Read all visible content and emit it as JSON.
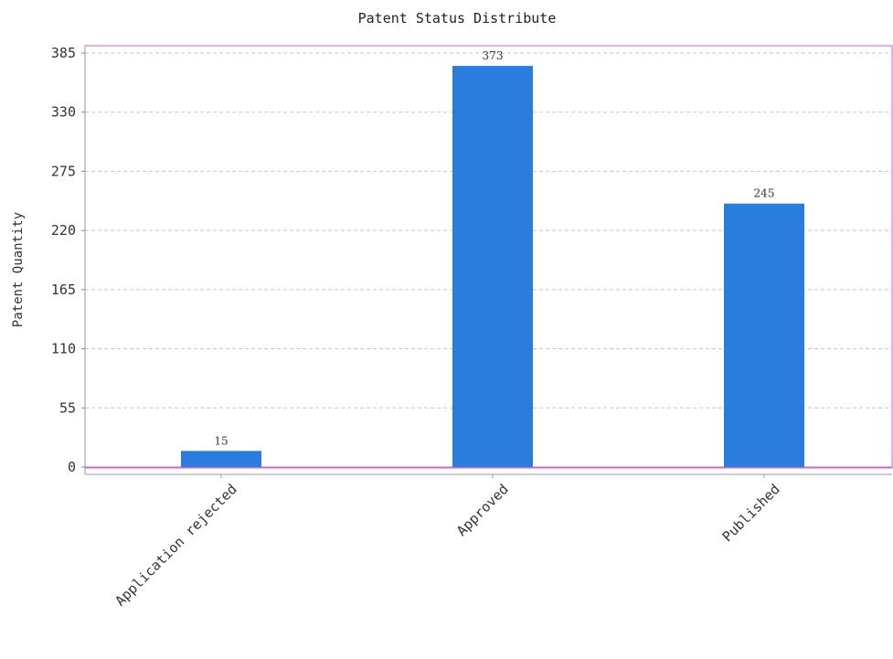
{
  "chart_data": {
    "type": "bar",
    "title": "Patent Status Distribute",
    "ylabel": "Patent Quantity",
    "xlabel": "",
    "categories": [
      "Application rejected",
      "Approved",
      "Published"
    ],
    "values": [
      15,
      373,
      245
    ],
    "data_labels": [
      "15",
      "373",
      "245"
    ],
    "ylim": [
      0,
      385
    ],
    "yticks": [
      0,
      55,
      110,
      165,
      220,
      275,
      330,
      385
    ],
    "grid": true,
    "legend": "none",
    "bar_color": "#2a7ddc",
    "frame_color": "#cc66cc"
  }
}
